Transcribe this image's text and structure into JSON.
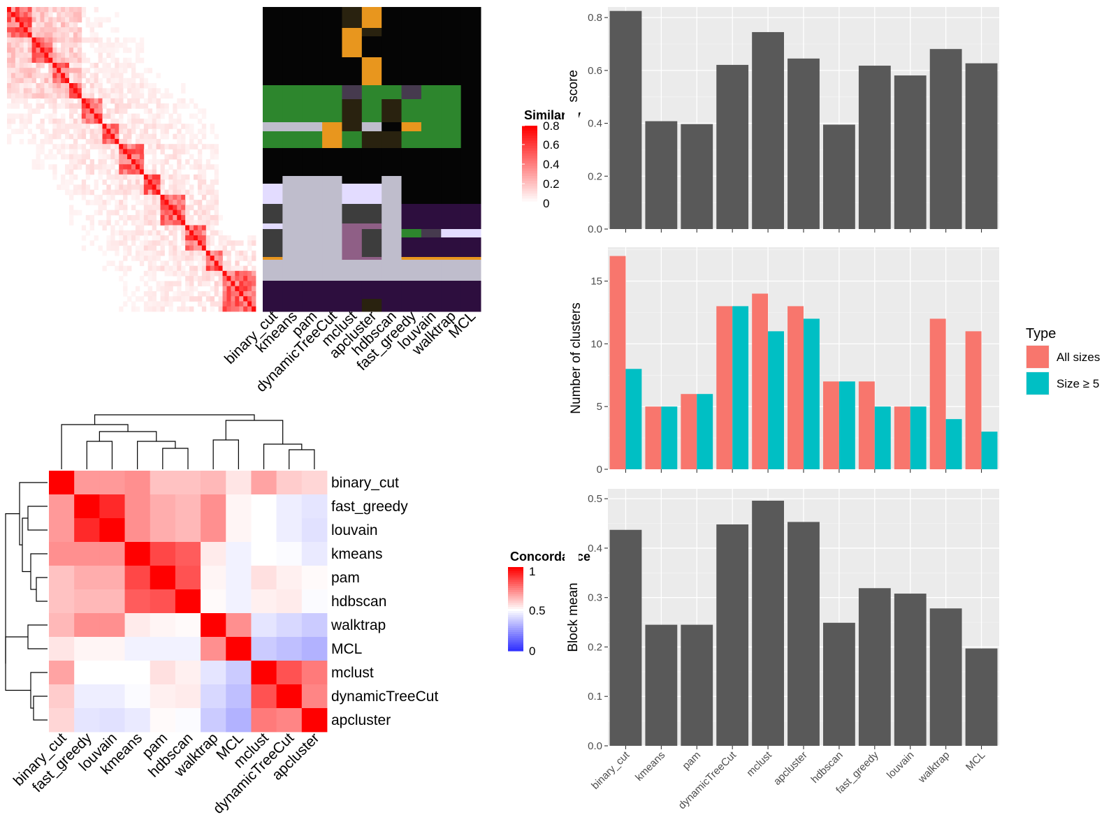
{
  "chart_data": [
    {
      "type": "heatmap",
      "panel": "term-similarity-heatmap",
      "legend": {
        "title": "Similarity",
        "ticks": [
          "0.8",
          "0.6",
          "0.4",
          "0.2",
          "0"
        ],
        "colors": [
          "#ffffff",
          "#ff0000"
        ]
      }
    },
    {
      "type": "heatmap",
      "panel": "cluster-assignment-heatmap",
      "columns": [
        "binary_cut",
        "kmeans",
        "pam",
        "dynamicTreeCut",
        "mclust",
        "apcluster",
        "hdbscan",
        "fast_greedy",
        "louvain",
        "walktrap",
        "MCL"
      ],
      "palette": [
        "#050505",
        "#e8961e",
        "#2d862d",
        "#bfbdcc",
        "#e3dcff",
        "#2d0e3e",
        "#3d3d3d",
        "#8f5f86",
        "#29220f",
        "#463a4e"
      ]
    },
    {
      "type": "heatmap",
      "panel": "concordance-heatmap",
      "labels": [
        "binary_cut",
        "fast_greedy",
        "louvain",
        "kmeans",
        "pam",
        "hdbscan",
        "walktrap",
        "MCL",
        "mclust",
        "dynamicTreeCut",
        "apcluster"
      ],
      "values": [
        [
          1.0,
          0.7,
          0.7,
          0.72,
          0.62,
          0.62,
          0.64,
          0.55,
          0.68,
          0.6,
          0.58
        ],
        [
          0.7,
          1.0,
          0.92,
          0.72,
          0.66,
          0.64,
          0.72,
          0.52,
          0.5,
          0.46,
          0.44
        ],
        [
          0.7,
          0.92,
          1.0,
          0.72,
          0.66,
          0.64,
          0.72,
          0.52,
          0.5,
          0.46,
          0.43
        ],
        [
          0.72,
          0.72,
          0.72,
          1.0,
          0.86,
          0.82,
          0.54,
          0.47,
          0.5,
          0.49,
          0.45
        ],
        [
          0.62,
          0.66,
          0.66,
          0.86,
          1.0,
          0.84,
          0.52,
          0.47,
          0.56,
          0.53,
          0.51
        ],
        [
          0.62,
          0.64,
          0.64,
          0.82,
          0.84,
          1.0,
          0.51,
          0.47,
          0.53,
          0.54,
          0.49
        ],
        [
          0.64,
          0.72,
          0.72,
          0.54,
          0.52,
          0.51,
          1.0,
          0.72,
          0.44,
          0.41,
          0.38
        ],
        [
          0.55,
          0.52,
          0.52,
          0.47,
          0.47,
          0.47,
          0.72,
          1.0,
          0.38,
          0.35,
          0.32
        ],
        [
          0.68,
          0.5,
          0.5,
          0.5,
          0.56,
          0.53,
          0.44,
          0.38,
          1.0,
          0.84,
          0.76
        ],
        [
          0.6,
          0.46,
          0.46,
          0.49,
          0.53,
          0.54,
          0.41,
          0.35,
          0.84,
          1.0,
          0.74
        ],
        [
          0.58,
          0.44,
          0.43,
          0.45,
          0.51,
          0.49,
          0.38,
          0.32,
          0.76,
          0.74,
          1.0
        ]
      ],
      "legend": {
        "title": "Concordance",
        "ticks": [
          "1",
          "0.5",
          "0"
        ],
        "colors": [
          "#0000ff",
          "#ffffff",
          "#ff0000"
        ]
      }
    },
    {
      "type": "bar",
      "panel": "difference-score",
      "categories": [
        "binary_cut",
        "kmeans",
        "pam",
        "dynamicTreeCut",
        "mclust",
        "apcluster",
        "hdbscan",
        "fast_greedy",
        "louvain",
        "walktrap",
        "MCL"
      ],
      "values": [
        0.825,
        0.408,
        0.397,
        0.621,
        0.745,
        0.645,
        0.395,
        0.618,
        0.581,
        0.681,
        0.627
      ],
      "ylabel": "Difference score",
      "ylim": [
        0,
        0.84
      ],
      "yticks": [
        "0.0",
        "0.2",
        "0.4",
        "0.6",
        "0.8"
      ],
      "color": "#595959"
    },
    {
      "type": "bar",
      "panel": "number-of-clusters",
      "categories": [
        "binary_cut",
        "kmeans",
        "pam",
        "dynamicTreeCut",
        "mclust",
        "apcluster",
        "hdbscan",
        "fast_greedy",
        "louvain",
        "walktrap",
        "MCL"
      ],
      "series": [
        {
          "name": "All sizes",
          "values": [
            17,
            5,
            6,
            13,
            14,
            13,
            7,
            7,
            5,
            12,
            11
          ],
          "color": "#f8766d"
        },
        {
          "name": "Size ≥ 5",
          "values": [
            8,
            5,
            6,
            13,
            11,
            12,
            7,
            5,
            5,
            4,
            3
          ],
          "color": "#00bfc4"
        }
      ],
      "ylabel": "Number of clusters",
      "ylim": [
        0,
        17.7
      ],
      "yticks": [
        "0",
        "5",
        "10",
        "15"
      ],
      "legend": {
        "title": "Type"
      }
    },
    {
      "type": "bar",
      "panel": "block-mean",
      "categories": [
        "binary_cut",
        "kmeans",
        "pam",
        "dynamicTreeCut",
        "mclust",
        "apcluster",
        "hdbscan",
        "fast_greedy",
        "louvain",
        "walktrap",
        "MCL"
      ],
      "values": [
        0.437,
        0.245,
        0.245,
        0.448,
        0.496,
        0.453,
        0.249,
        0.319,
        0.308,
        0.278,
        0.197
      ],
      "ylabel": "Block mean",
      "ylim": [
        0,
        0.52
      ],
      "yticks": [
        "0.0",
        "0.1",
        "0.2",
        "0.3",
        "0.4",
        "0.5"
      ],
      "color": "#595959"
    }
  ]
}
